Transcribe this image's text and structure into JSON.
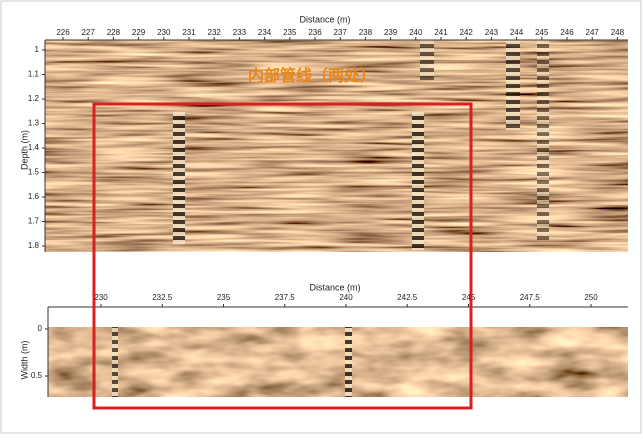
{
  "top_panel": {
    "x_label": "Distance (m)",
    "x_ticks": [
      "226",
      "227",
      "228",
      "229",
      "230",
      "231",
      "232",
      "233",
      "234",
      "235",
      "236",
      "237",
      "238",
      "239",
      "240",
      "241",
      "242",
      "243",
      "244",
      "245",
      "246",
      "247",
      "248"
    ],
    "y_label": "Depth (m)",
    "y_ticks": [
      "1",
      "1.1",
      "1.2",
      "1.3",
      "1.4",
      "1.5",
      "1.6",
      "1.7",
      "1.8"
    ]
  },
  "annotation": "内部管线（两处）",
  "bottom_panel": {
    "x_label": "Distance (m)",
    "x_ticks": [
      "230",
      "232.5",
      "235",
      "237.5",
      "240",
      "242.5",
      "245",
      "247.5",
      "250"
    ],
    "y_label": "Width (m)",
    "y_ticks": [
      "0",
      "0.5"
    ]
  }
}
